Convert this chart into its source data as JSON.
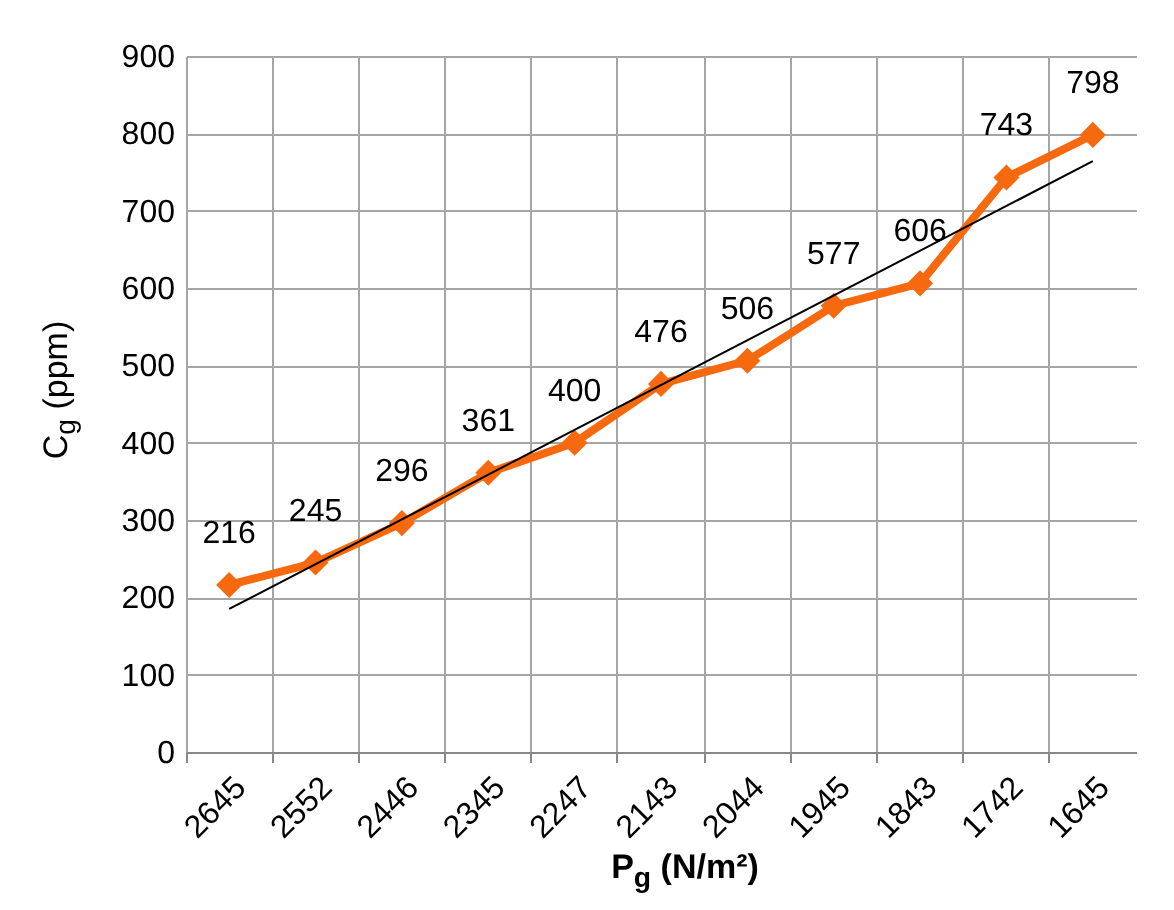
{
  "chart_data": {
    "type": "line",
    "xlabel": "P$_{g}$ (N/m²)",
    "ylabel": "C$_{g}$ (ppm)",
    "categories": [
      "2645",
      "2552",
      "2446",
      "2345",
      "2247",
      "2143",
      "2044",
      "1945",
      "1843",
      "1742",
      "1645"
    ],
    "series": [
      {
        "color": "#f7690f",
        "values": [
          216,
          245,
          296,
          361,
          400,
          476,
          506,
          577,
          606,
          743,
          798
        ],
        "marker": "diamond",
        "value_labels": [
          "216",
          "245",
          "296",
          "361",
          "400",
          "476",
          "506",
          "577",
          "606",
          "743",
          "798"
        ]
      },
      {
        "type": "line",
        "color": "#000000",
        "values": [
          185,
          null,
          null,
          null,
          null,
          null,
          null,
          null,
          null,
          null,
          764
        ],
        "marker": "none"
      }
    ],
    "ylim": [
      0,
      900
    ],
    "yticks": [
      0,
      100,
      200,
      300,
      400,
      500,
      600,
      700,
      800,
      900
    ],
    "grid": true
  }
}
